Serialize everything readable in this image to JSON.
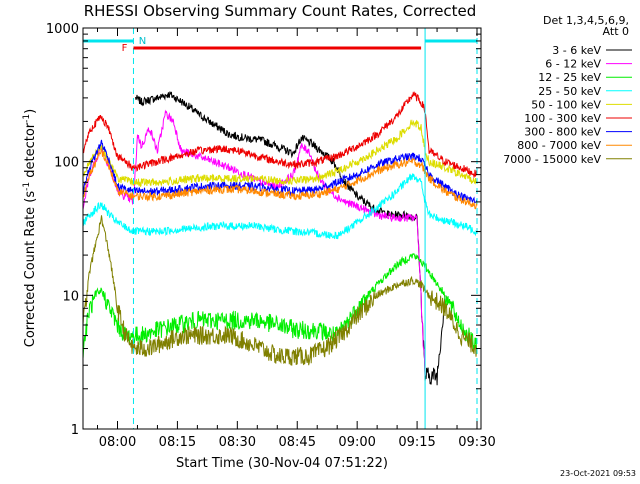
{
  "chart_data": {
    "type": "line",
    "title": "RHESSI Observing Summary Count Rates, Corrected",
    "xlabel": "Start Time (30-Nov-04 07:51:22)",
    "ylabel_main": "Corrected Count Rate (s",
    "ylabel_sup1": "-1",
    "ylabel_mid": " detector",
    "ylabel_sup2": "-1",
    "ylabel_end": ")",
    "y_scale": "log",
    "ylim": [
      1,
      1000
    ],
    "xlim_minutes": [
      "07:51:22",
      "09:31:00"
    ],
    "x_ticks": [
      "08:00",
      "08:15",
      "08:30",
      "08:45",
      "09:00",
      "09:15",
      "09:30"
    ],
    "x_tick_minutes": [
      480,
      495,
      510,
      525,
      540,
      555,
      570
    ],
    "y_ticks": [
      "1",
      "10",
      "100",
      "1000"
    ],
    "y_tick_values": [
      1,
      10,
      100,
      1000
    ],
    "legend_header": [
      "Det 1,3,4,5,6,9,",
      "Att 0"
    ],
    "legend_position": "right",
    "timestamp": "23-Oct-2021 09:53",
    "flag_labels": {
      "F": "F",
      "N": "N"
    },
    "flags": [
      {
        "name": "night",
        "color": "#00e5ee",
        "segments": [
          [
            471.4,
            484.0
          ],
          [
            557.0,
            570.0
          ]
        ]
      },
      {
        "name": "flare",
        "color": "#ee0000",
        "segments": [
          [
            484.0,
            556.0
          ]
        ]
      }
    ],
    "vlines": [
      {
        "x": 484.0,
        "color": "#00e5ee",
        "style": "dashed"
      },
      {
        "x": 557.0,
        "color": "#00e5ee",
        "style": "solid"
      },
      {
        "x": 570.0,
        "color": "#00e5ee",
        "style": "dashed"
      }
    ],
    "series": [
      {
        "name": "3 - 6 keV",
        "color": "#000000",
        "points": [
          [
            484.5,
            300
          ],
          [
            486,
            280
          ],
          [
            490,
            300
          ],
          [
            493,
            320
          ],
          [
            497,
            270
          ],
          [
            500,
            230
          ],
          [
            504,
            190
          ],
          [
            508,
            160
          ],
          [
            512,
            150
          ],
          [
            516,
            145
          ],
          [
            520,
            130
          ],
          [
            524,
            115
          ],
          [
            526,
            150
          ],
          [
            528,
            140
          ],
          [
            531,
            120
          ],
          [
            534,
            100
          ],
          [
            537,
            70
          ],
          [
            540,
            55
          ],
          [
            544,
            45
          ],
          [
            548,
            40
          ],
          [
            552,
            40
          ],
          [
            555,
            38
          ],
          [
            557,
            2.5
          ],
          [
            560,
            2.5
          ],
          [
            562,
            10
          ]
        ]
      },
      {
        "name": "6 - 12 keV",
        "color": "#ff00ff",
        "points": [
          [
            471.4,
            45
          ],
          [
            473,
            80
          ],
          [
            476,
            130
          ],
          [
            478,
            90
          ],
          [
            480,
            60
          ],
          [
            484,
            50
          ],
          [
            485,
            160
          ],
          [
            486,
            130
          ],
          [
            488,
            180
          ],
          [
            490,
            120
          ],
          [
            492,
            230
          ],
          [
            494,
            200
          ],
          [
            496,
            120
          ],
          [
            500,
            110
          ],
          [
            504,
            100
          ],
          [
            508,
            90
          ],
          [
            512,
            80
          ],
          [
            516,
            70
          ],
          [
            520,
            65
          ],
          [
            524,
            80
          ],
          [
            526,
            130
          ],
          [
            528,
            120
          ],
          [
            530,
            80
          ],
          [
            533,
            60
          ],
          [
            537,
            50
          ],
          [
            541,
            45
          ],
          [
            545,
            40
          ],
          [
            549,
            38
          ],
          [
            552,
            38
          ],
          [
            555,
            38
          ],
          [
            557,
            2.5
          ]
        ]
      },
      {
        "name": "12 - 25 keV",
        "color": "#00ee00",
        "points": [
          [
            471.4,
            4
          ],
          [
            473,
            8
          ],
          [
            476,
            11
          ],
          [
            478,
            8
          ],
          [
            480,
            6
          ],
          [
            482,
            5
          ],
          [
            484,
            5
          ],
          [
            486,
            5
          ],
          [
            490,
            5.5
          ],
          [
            495,
            6
          ],
          [
            500,
            6.5
          ],
          [
            505,
            6.5
          ],
          [
            510,
            6.5
          ],
          [
            515,
            6.5
          ],
          [
            520,
            6
          ],
          [
            525,
            5.5
          ],
          [
            530,
            5.5
          ],
          [
            535,
            5
          ],
          [
            540,
            8
          ],
          [
            545,
            12
          ],
          [
            550,
            17
          ],
          [
            554,
            20
          ],
          [
            556,
            18
          ],
          [
            558,
            15
          ],
          [
            562,
            10
          ],
          [
            566,
            6
          ],
          [
            570,
            4
          ]
        ]
      },
      {
        "name": "25 - 50 keV",
        "color": "#00ffff",
        "points": [
          [
            471.4,
            35
          ],
          [
            473,
            40
          ],
          [
            476,
            48
          ],
          [
            478,
            40
          ],
          [
            480,
            35
          ],
          [
            484,
            30
          ],
          [
            490,
            30
          ],
          [
            495,
            31
          ],
          [
            500,
            32
          ],
          [
            505,
            33
          ],
          [
            510,
            33
          ],
          [
            515,
            33
          ],
          [
            520,
            31
          ],
          [
            525,
            30
          ],
          [
            530,
            29
          ],
          [
            535,
            28
          ],
          [
            540,
            35
          ],
          [
            545,
            45
          ],
          [
            550,
            60
          ],
          [
            554,
            80
          ],
          [
            556,
            70
          ],
          [
            557,
            50
          ],
          [
            558,
            40
          ],
          [
            560,
            38
          ],
          [
            564,
            35
          ],
          [
            568,
            32
          ],
          [
            570,
            30
          ]
        ]
      },
      {
        "name": "50 - 100 keV",
        "color": "#dddd00",
        "points": [
          [
            471.4,
            80
          ],
          [
            473,
            100
          ],
          [
            476,
            130
          ],
          [
            478,
            100
          ],
          [
            480,
            75
          ],
          [
            484,
            70
          ],
          [
            490,
            70
          ],
          [
            495,
            72
          ],
          [
            500,
            75
          ],
          [
            505,
            75
          ],
          [
            510,
            75
          ],
          [
            515,
            75
          ],
          [
            520,
            72
          ],
          [
            525,
            72
          ],
          [
            530,
            75
          ],
          [
            535,
            85
          ],
          [
            540,
            100
          ],
          [
            545,
            120
          ],
          [
            550,
            150
          ],
          [
            554,
            200
          ],
          [
            556,
            180
          ],
          [
            557,
            120
          ],
          [
            558,
            100
          ],
          [
            562,
            90
          ],
          [
            566,
            80
          ],
          [
            570,
            70
          ]
        ]
      },
      {
        "name": "100 - 300 keV",
        "color": "#ee0000",
        "points": [
          [
            471.4,
            120
          ],
          [
            473,
            170
          ],
          [
            476,
            220
          ],
          [
            478,
            170
          ],
          [
            480,
            110
          ],
          [
            484,
            90
          ],
          [
            490,
            100
          ],
          [
            495,
            110
          ],
          [
            500,
            120
          ],
          [
            505,
            125
          ],
          [
            510,
            122
          ],
          [
            515,
            110
          ],
          [
            520,
            100
          ],
          [
            525,
            95
          ],
          [
            530,
            100
          ],
          [
            535,
            110
          ],
          [
            540,
            130
          ],
          [
            545,
            160
          ],
          [
            550,
            220
          ],
          [
            554,
            320
          ],
          [
            556,
            280
          ],
          [
            557,
            240
          ],
          [
            558,
            120
          ],
          [
            562,
            100
          ],
          [
            566,
            90
          ],
          [
            570,
            80
          ]
        ]
      },
      {
        "name": "300 - 800 keV",
        "color": "#0000ff",
        "points": [
          [
            471.4,
            60
          ],
          [
            473,
            90
          ],
          [
            476,
            140
          ],
          [
            478,
            100
          ],
          [
            480,
            65
          ],
          [
            484,
            60
          ],
          [
            490,
            60
          ],
          [
            495,
            62
          ],
          [
            500,
            65
          ],
          [
            505,
            66
          ],
          [
            510,
            66
          ],
          [
            515,
            65
          ],
          [
            520,
            62
          ],
          [
            525,
            60
          ],
          [
            530,
            62
          ],
          [
            535,
            70
          ],
          [
            540,
            80
          ],
          [
            545,
            95
          ],
          [
            550,
            105
          ],
          [
            554,
            110
          ],
          [
            556,
            105
          ],
          [
            558,
            80
          ],
          [
            562,
            65
          ],
          [
            566,
            55
          ],
          [
            570,
            50
          ]
        ]
      },
      {
        "name": "800 - 7000 keV",
        "color": "#ff8800",
        "points": [
          [
            471.4,
            55
          ],
          [
            473,
            80
          ],
          [
            476,
            120
          ],
          [
            478,
            90
          ],
          [
            480,
            60
          ],
          [
            484,
            55
          ],
          [
            490,
            55
          ],
          [
            495,
            57
          ],
          [
            500,
            60
          ],
          [
            505,
            62
          ],
          [
            510,
            62
          ],
          [
            515,
            60
          ],
          [
            520,
            57
          ],
          [
            525,
            55
          ],
          [
            530,
            57
          ],
          [
            535,
            62
          ],
          [
            540,
            72
          ],
          [
            545,
            85
          ],
          [
            550,
            95
          ],
          [
            554,
            100
          ],
          [
            556,
            95
          ],
          [
            558,
            75
          ],
          [
            562,
            60
          ],
          [
            566,
            52
          ],
          [
            570,
            47
          ]
        ]
      },
      {
        "name": "7000 - 15000 keV",
        "color": "#808000",
        "points": [
          [
            471.4,
            6
          ],
          [
            473,
            15
          ],
          [
            476,
            38
          ],
          [
            478,
            20
          ],
          [
            480,
            8
          ],
          [
            482,
            5
          ],
          [
            484,
            4
          ],
          [
            488,
            4
          ],
          [
            492,
            4.5
          ],
          [
            496,
            5
          ],
          [
            500,
            5
          ],
          [
            504,
            5
          ],
          [
            508,
            5
          ],
          [
            512,
            4.5
          ],
          [
            516,
            4
          ],
          [
            520,
            3.5
          ],
          [
            524,
            3.5
          ],
          [
            528,
            3.5
          ],
          [
            532,
            4
          ],
          [
            536,
            5
          ],
          [
            540,
            7
          ],
          [
            545,
            10
          ],
          [
            550,
            12
          ],
          [
            554,
            13
          ],
          [
            556,
            12
          ],
          [
            558,
            10
          ],
          [
            562,
            8
          ],
          [
            566,
            5
          ],
          [
            570,
            4
          ]
        ]
      }
    ]
  }
}
